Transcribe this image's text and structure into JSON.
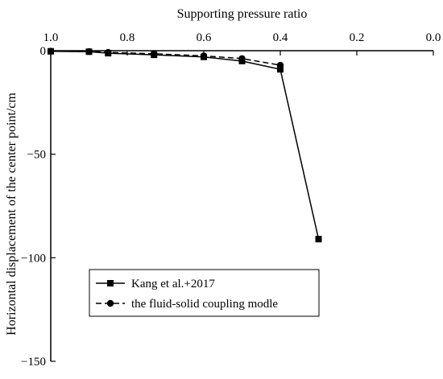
{
  "chart_data": {
    "type": "line",
    "title": "",
    "xlabel": "Supporting pressure ratio",
    "ylabel": "Horizontal displacement of the center point/cm",
    "x_axis_position": "top",
    "x_reversed": true,
    "xlim": [
      0.0,
      1.0
    ],
    "ylim": [
      -150,
      0
    ],
    "x_ticks": [
      1.0,
      0.8,
      0.6,
      0.4,
      0.2,
      0.0
    ],
    "x_tick_labels": [
      "1.0",
      "0.8",
      "0.6",
      "0.4",
      "0.2",
      "0.0"
    ],
    "y_ticks": [
      0,
      -50,
      -100,
      -150
    ],
    "y_tick_labels": [
      "0",
      "−50",
      "−100",
      "−150"
    ],
    "grid": false,
    "legend_position": "bottom-left",
    "series": [
      {
        "name": "Kang et al.+2017",
        "marker": "square",
        "line_style": "solid",
        "color": "#000000",
        "x": [
          1.0,
          0.9,
          0.85,
          0.73,
          0.6,
          0.5,
          0.4,
          0.3
        ],
        "y": [
          -0.3,
          -0.5,
          -1.2,
          -2.0,
          -3.0,
          -5.0,
          -9.0,
          -91.0
        ]
      },
      {
        "name": "the fluid-solid coupling modle",
        "marker": "circle",
        "line_style": "dashed",
        "color": "#000000",
        "x": [
          1.0,
          0.9,
          0.85,
          0.73,
          0.6,
          0.5,
          0.4
        ],
        "y": [
          -0.2,
          -0.4,
          -0.8,
          -1.5,
          -2.5,
          -3.8,
          -7.0
        ]
      }
    ]
  }
}
